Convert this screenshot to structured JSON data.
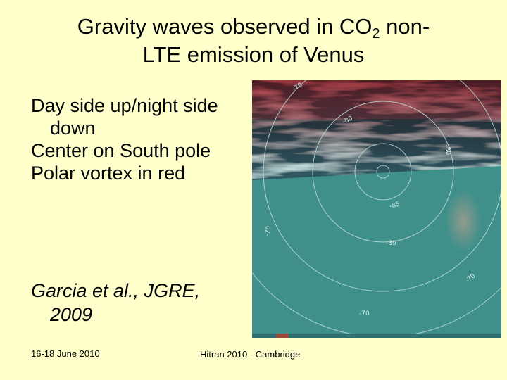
{
  "slide": {
    "title_part1": "Gravity waves observed in CO",
    "title_sub": "2",
    "title_part2": " non-",
    "title_line2": "LTE emission of Venus",
    "bullets": [
      "Day side up/night side down",
      "Center on South pole",
      "Polar vortex in red"
    ],
    "reference": "Garcia et al., JGRE, 2009",
    "footer_date": "16-18 June 2010",
    "footer_event": "Hitran 2010 - Cambridge"
  },
  "image": {
    "contour_labels": [
      "-70",
      "-80",
      "-80",
      "-85",
      "-70",
      "-80",
      "-70",
      "-70"
    ],
    "colors": {
      "background": "#ffffcc",
      "ocean_teal": "#3f8f8b",
      "wave_cyan": "#9ef2ee",
      "vortex_red": "#b01e28",
      "contour": "#bfe0dc"
    }
  }
}
